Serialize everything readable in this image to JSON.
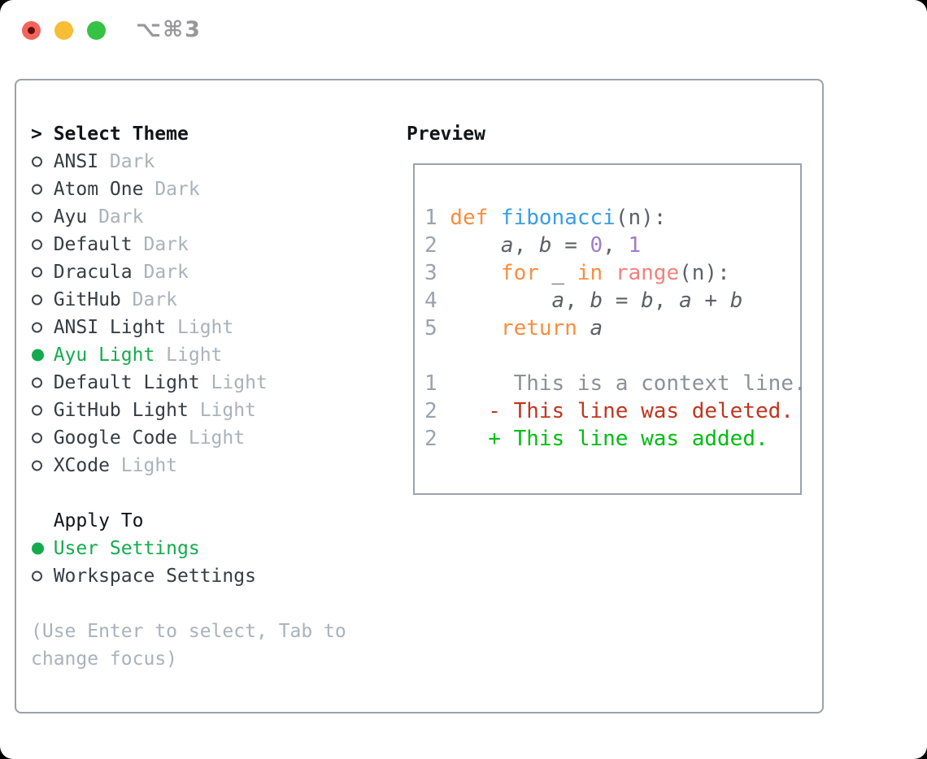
{
  "window": {
    "title": "⌥⌘3",
    "traffic_lights": [
      "close",
      "minimize",
      "zoom"
    ]
  },
  "theme_list": {
    "prompt": ">",
    "header": "Select Theme",
    "items": [
      {
        "name": "ANSI",
        "variant": "Dark",
        "selected": false
      },
      {
        "name": "Atom One",
        "variant": "Dark",
        "selected": false
      },
      {
        "name": "Ayu",
        "variant": "Dark",
        "selected": false
      },
      {
        "name": "Default",
        "variant": "Dark",
        "selected": false
      },
      {
        "name": "Dracula",
        "variant": "Dark",
        "selected": false
      },
      {
        "name": "GitHub",
        "variant": "Dark",
        "selected": false
      },
      {
        "name": "ANSI Light",
        "variant": "Light",
        "selected": false
      },
      {
        "name": "Ayu Light",
        "variant": "Light",
        "selected": true
      },
      {
        "name": "Default Light",
        "variant": "Light",
        "selected": false
      },
      {
        "name": "GitHub Light",
        "variant": "Light",
        "selected": false
      },
      {
        "name": "Google Code",
        "variant": "Light",
        "selected": false
      },
      {
        "name": "XCode",
        "variant": "Light",
        "selected": false
      }
    ]
  },
  "apply_to": {
    "header": "Apply To",
    "options": [
      {
        "label": "User Settings",
        "selected": true
      },
      {
        "label": "Workspace Settings",
        "selected": false
      }
    ]
  },
  "hint": {
    "line1": "(Use Enter to select, Tab to",
    "line2": "change focus)"
  },
  "preview": {
    "header": "Preview",
    "lines": [
      {
        "num": "1",
        "tokens": [
          [
            "def",
            "keyword"
          ],
          [
            " ",
            "fg"
          ],
          [
            "fibonacci",
            "entity"
          ],
          [
            "(n):",
            "fg"
          ]
        ]
      },
      {
        "num": "2",
        "tokens": [
          [
            "    ",
            "fg"
          ],
          [
            "a",
            "var"
          ],
          [
            ", ",
            "fg"
          ],
          [
            "b",
            "var"
          ],
          [
            " = ",
            "fg"
          ],
          [
            "0",
            "number"
          ],
          [
            ", ",
            "fg"
          ],
          [
            "1",
            "number"
          ]
        ]
      },
      {
        "num": "3",
        "tokens": [
          [
            "    ",
            "fg"
          ],
          [
            "for",
            "keyword"
          ],
          [
            " _ ",
            "fg"
          ],
          [
            "in",
            "keyword"
          ],
          [
            " ",
            "fg"
          ],
          [
            "range",
            "funccall"
          ],
          [
            "(n):",
            "fg"
          ]
        ]
      },
      {
        "num": "4",
        "tokens": [
          [
            "        ",
            "fg"
          ],
          [
            "a",
            "var"
          ],
          [
            ", ",
            "fg"
          ],
          [
            "b",
            "var"
          ],
          [
            " = ",
            "fg"
          ],
          [
            "b",
            "var"
          ],
          [
            ", ",
            "fg"
          ],
          [
            "a",
            "var"
          ],
          [
            " + ",
            "fg"
          ],
          [
            "b",
            "var"
          ]
        ]
      },
      {
        "num": "5",
        "tokens": [
          [
            "    ",
            "fg"
          ],
          [
            "return",
            "keyword"
          ],
          [
            " ",
            "fg"
          ],
          [
            "a",
            "var"
          ]
        ]
      },
      {
        "num": "",
        "tokens": []
      },
      {
        "num": "1",
        "tokens": [
          [
            "     This is a context line.",
            "context"
          ]
        ]
      },
      {
        "num": "2",
        "tokens": [
          [
            "   ",
            "fg"
          ],
          [
            "- This line was deleted.",
            "deleted"
          ]
        ]
      },
      {
        "num": "2",
        "tokens": [
          [
            "   ",
            "fg"
          ],
          [
            "+ This line was added.",
            "added"
          ]
        ]
      }
    ]
  },
  "colors": {
    "accent_green": "#13ab4d",
    "keyword": "#fa8d3e",
    "entity": "#399ee6",
    "funccall": "#f4817d",
    "number_const": "#a37acc",
    "code_fg": "#5c6166",
    "line_number": "#9aa3ad",
    "context": "#8a9199",
    "deleted": "#c0361f",
    "added": "#00bd13",
    "muted": "#a9b2bb",
    "item_text": "#353c43",
    "header_text": "#111418",
    "radio_stroke": "#3e454d",
    "border_gray": "#9aa2ab",
    "title_gray": "#96969b",
    "traffic_red": "#f4645a",
    "traffic_red_dot": "#5e100e",
    "traffic_yellow": "#f9bc35",
    "traffic_green": "#35c245"
  }
}
